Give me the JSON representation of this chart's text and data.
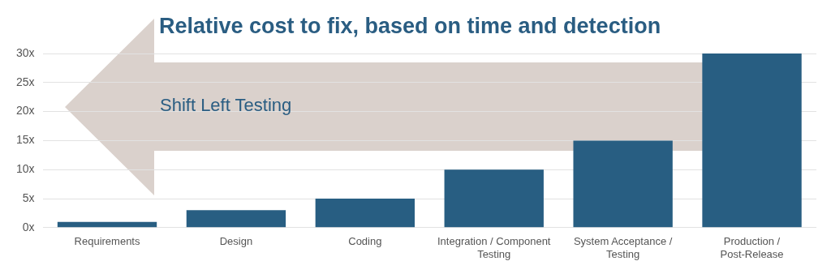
{
  "chart_data": {
    "type": "bar",
    "title": "Relative cost to fix, based on time and detection",
    "categories": [
      "Requirements",
      "Design",
      "Coding",
      "Integration / Component Testing",
      "System Acceptance / Testing",
      "Production / Post-Release"
    ],
    "values": [
      1,
      3,
      5,
      10,
      15,
      30
    ],
    "color": "#285e82",
    "ylim": [
      0,
      30
    ],
    "yticks": [
      {
        "value": 0,
        "label": "0x"
      },
      {
        "value": 5,
        "label": "5x"
      },
      {
        "value": 10,
        "label": "10x"
      },
      {
        "value": 15,
        "label": "15x"
      },
      {
        "value": 20,
        "label": "20x"
      },
      {
        "value": 25,
        "label": "25x"
      },
      {
        "value": 30,
        "label": "30x"
      }
    ],
    "grid": "y",
    "legend": false,
    "annotations": [
      "Shift Left Testing"
    ]
  }
}
